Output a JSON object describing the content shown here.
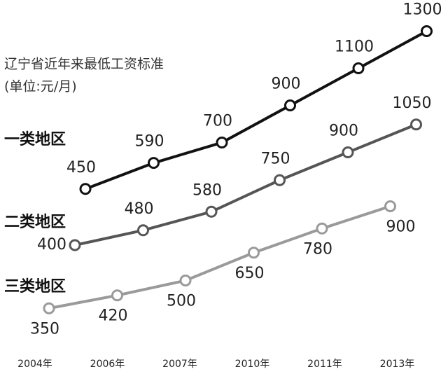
{
  "chart_data": {
    "type": "line",
    "title": "辽宁省近年来最低工资标准",
    "subtitle": "(单位:元/月)",
    "categories": [
      "2004年",
      "2006年",
      "2007年",
      "2010年",
      "2011年",
      "2013年"
    ],
    "series": [
      {
        "name": "一类地区",
        "color": "#111111",
        "values": [
          450,
          590,
          700,
          900,
          1100,
          1300
        ]
      },
      {
        "name": "二类地区",
        "color": "#555555",
        "values": [
          400,
          480,
          580,
          750,
          900,
          1050
        ]
      },
      {
        "name": "三类地区",
        "color": "#9a9a9a",
        "values": [
          350,
          420,
          500,
          650,
          780,
          900
        ]
      }
    ]
  }
}
